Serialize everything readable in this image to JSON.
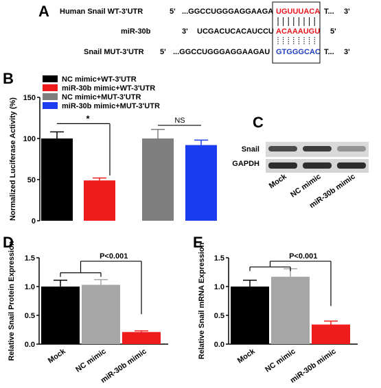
{
  "panel_a": {
    "label": "A",
    "rows": [
      {
        "name": "Human Snail WT-3'UTR",
        "p5": "5'",
        "seq": "...GGCCUGGGAGGAAGA",
        "site": "UGUUUACA",
        "tail": "T...",
        "p3": "3'"
      },
      {
        "name": "miR-30b",
        "p5": "3'",
        "seq": "UCGACUCACAUCCU",
        "site": "ACAAAUGU",
        "tail": "",
        "p3": "5'"
      },
      {
        "name": "Snail MUT-3'UTR",
        "p5": "5'",
        "seq": "...GGCCUGGGAGGAAGAU",
        "site": "GTGGGCAC",
        "tail": "T...",
        "p3": "3'"
      }
    ]
  },
  "colors": {
    "black": "#000000",
    "red": "#ee1c1c",
    "gray": "#7f7f7f",
    "blue": "#1c3cf0",
    "lightgray": "#a6a6a6"
  },
  "chart_data": [
    {
      "panel": "B",
      "type": "bar",
      "ylabel": "Normalized Luciferase Activity (%)",
      "ylim": [
        0,
        150
      ],
      "yticks": [
        "0",
        "50",
        "100",
        "150"
      ],
      "series": [
        {
          "name": "NC mimic+WT-3'UTR",
          "value": 100,
          "error": 8,
          "color": "#000000"
        },
        {
          "name": "miR-30b mimic+WT-3'UTR",
          "value": 49,
          "error": 3,
          "color": "#ee1c1c"
        },
        {
          "name": "NC mimic+MUT-3'UTR",
          "value": 100,
          "error": 11,
          "color": "#7f7f7f"
        },
        {
          "name": "miR-30b mimic+MUT-3'UTR",
          "value": 92,
          "error": 6,
          "color": "#1c3cf0"
        }
      ],
      "annotations": [
        "*",
        "NS"
      ]
    },
    {
      "panel": "D",
      "type": "bar",
      "ylabel": "Relative Snail Protein Expression",
      "ylim": [
        0,
        1.5
      ],
      "yticks": [
        "0.0",
        "0.5",
        "1.0",
        "1.5"
      ],
      "categories": [
        "Mock",
        "NC mimic",
        "miR-30b mimic"
      ],
      "values": [
        1.0,
        1.03,
        0.21
      ],
      "errors": [
        0.11,
        0.09,
        0.02
      ],
      "colors": [
        "#000000",
        "#a6a6a6",
        "#ee1c1c"
      ],
      "annotation": "P<0.001"
    },
    {
      "panel": "E",
      "type": "bar",
      "ylabel": "Relative Snail mRNA Expression",
      "ylim": [
        0,
        1.5
      ],
      "yticks": [
        "0.0",
        "0.5",
        "1.0",
        "1.5"
      ],
      "categories": [
        "Mock",
        "NC mimic",
        "miR-30b mimic"
      ],
      "values": [
        1.0,
        1.17,
        0.34
      ],
      "errors": [
        0.11,
        0.14,
        0.06
      ],
      "colors": [
        "#000000",
        "#a6a6a6",
        "#ee1c1c"
      ],
      "annotation": "P<0.001"
    }
  ],
  "panel_labels": {
    "b": "B",
    "c": "C",
    "d": "D",
    "e": "E"
  },
  "blot": {
    "rows": [
      "Snail",
      "GAPDH"
    ],
    "lanes": [
      "Mock",
      "NC mimic",
      "miR-30b mimic"
    ]
  }
}
